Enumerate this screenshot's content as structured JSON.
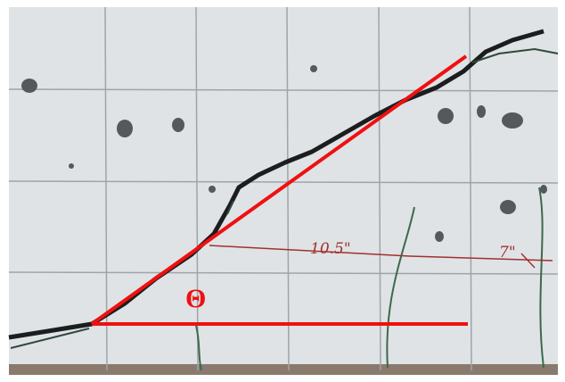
{
  "annotations": {
    "angle_label": "Θ",
    "measurements": [
      "10.5\"",
      "7\""
    ]
  }
}
